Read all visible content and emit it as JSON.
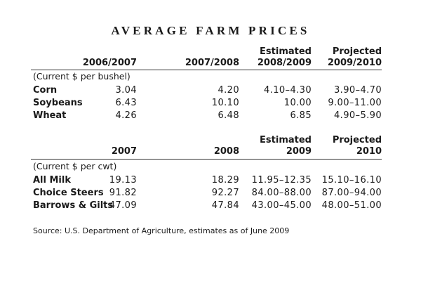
{
  "title": "AVERAGE FARM PRICES",
  "table1": {
    "headers": [
      {
        "line1": "",
        "line2": "2006/2007"
      },
      {
        "line1": "",
        "line2": "2007/2008"
      },
      {
        "line1": "Estimated",
        "line2": "2008/2009"
      },
      {
        "line1": "Projected",
        "line2": "2009/2010"
      }
    ],
    "unit": "(Current $ per bushel)",
    "rows": [
      {
        "label": "Corn",
        "values": [
          "3.04",
          "4.20",
          "4.10–4.30",
          "3.90–4.70"
        ]
      },
      {
        "label": "Soybeans",
        "values": [
          "6.43",
          "10.10",
          "10.00",
          "9.00–11.00"
        ]
      },
      {
        "label": "Wheat",
        "values": [
          "4.26",
          "6.48",
          "6.85",
          "4.90–5.90"
        ]
      }
    ]
  },
  "table2": {
    "headers": [
      {
        "line1": "",
        "line2": "2007"
      },
      {
        "line1": "",
        "line2": "2008"
      },
      {
        "line1": "Estimated",
        "line2": "2009"
      },
      {
        "line1": "Projected",
        "line2": "2010"
      }
    ],
    "unit": "(Current $ per cwt)",
    "rows": [
      {
        "label": "All Milk",
        "values": [
          "19.13",
          "18.29",
          "11.95–12.35",
          "15.10–16.10"
        ]
      },
      {
        "label": "Choice Steers",
        "values": [
          "91.82",
          "92.27",
          "84.00–88.00",
          "87.00–94.00"
        ]
      },
      {
        "label": "Barrows & Gilts",
        "values": [
          "47.09",
          "47.84",
          "43.00–45.00",
          "48.00–51.00"
        ]
      }
    ]
  },
  "source": "Source: U.S. Department of Agriculture, estimates as of June 2009"
}
